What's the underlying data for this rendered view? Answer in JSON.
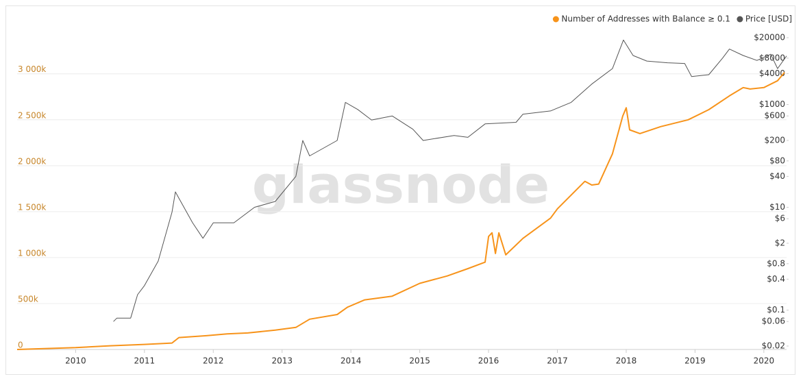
{
  "chart_data": {
    "type": "line",
    "watermark": "glassnode",
    "legend": "top-right",
    "grid": true,
    "xlim": [
      2009.15,
      2020.33
    ],
    "xticks": [
      2010,
      2011,
      2012,
      2013,
      2014,
      2015,
      2016,
      2017,
      2018,
      2019,
      2020
    ],
    "ylim": [
      0,
      3520000
    ],
    "yticks": [
      {
        "value": 0,
        "label": "0"
      },
      {
        "value": 500000,
        "label": "500k"
      },
      {
        "value": 1000000,
        "label": "1 000k"
      },
      {
        "value": 1500000,
        "label": "1 500k"
      },
      {
        "value": 2000000,
        "label": "2 000k"
      },
      {
        "value": 2500000,
        "label": "2 500k"
      },
      {
        "value": 3000000,
        "label": "3 000k"
      }
    ],
    "y2scale": "log",
    "y2lim": [
      0.01714,
      33650
    ],
    "y2ticks": [
      {
        "value": 0.02,
        "label": "$0.02"
      },
      {
        "value": 0.06,
        "label": "$0.06"
      },
      {
        "value": 0.1,
        "label": "$0.1"
      },
      {
        "value": 0.4,
        "label": "$0.4"
      },
      {
        "value": 0.8,
        "label": "$0.8"
      },
      {
        "value": 2,
        "label": "$2"
      },
      {
        "value": 6,
        "label": "$6"
      },
      {
        "value": 10,
        "label": "$10"
      },
      {
        "value": 40,
        "label": "$40"
      },
      {
        "value": 80,
        "label": "$80"
      },
      {
        "value": 200,
        "label": "$200"
      },
      {
        "value": 600,
        "label": "$600"
      },
      {
        "value": 1000,
        "label": "$1000"
      },
      {
        "value": 4000,
        "label": "$4000"
      },
      {
        "value": 8000,
        "label": "$8000"
      },
      {
        "value": 20000,
        "label": "$20000"
      }
    ],
    "series": [
      {
        "name": "Number of Addresses with Balance ≥ 0.1",
        "color": "#f7931a",
        "axis": "y",
        "x": [
          2009.15,
          2010.0,
          2010.5,
          2011.0,
          2011.4,
          2011.5,
          2011.9,
          2012.2,
          2012.5,
          2012.9,
          2013.2,
          2013.4,
          2013.8,
          2013.95,
          2014.2,
          2014.6,
          2015.0,
          2015.4,
          2015.7,
          2015.95,
          2016.0,
          2016.05,
          2016.1,
          2016.15,
          2016.25,
          2016.5,
          2016.9,
          2017.0,
          2017.4,
          2017.5,
          2017.6,
          2017.8,
          2017.95,
          2018.0,
          2018.05,
          2018.2,
          2018.5,
          2018.9,
          2019.2,
          2019.5,
          2019.7,
          2019.8,
          2020.0,
          2020.2,
          2020.3
        ],
        "values": [
          0,
          20000,
          40000,
          55000,
          70000,
          130000,
          150000,
          170000,
          180000,
          210000,
          240000,
          330000,
          380000,
          460000,
          540000,
          580000,
          720000,
          800000,
          880000,
          950000,
          1230000,
          1270000,
          1045000,
          1270000,
          1030000,
          1210000,
          1430000,
          1530000,
          1830000,
          1790000,
          1800000,
          2130000,
          2540000,
          2630000,
          2390000,
          2350000,
          2425000,
          2500000,
          2610000,
          2760000,
          2850000,
          2835000,
          2850000,
          2925000,
          3015000
        ]
      },
      {
        "name": "Price [USD]",
        "color": "#555555",
        "axis": "y2",
        "x": [
          2010.55,
          2010.6,
          2010.8,
          2010.9,
          2011.0,
          2011.2,
          2011.4,
          2011.45,
          2011.5,
          2011.7,
          2011.85,
          2012.0,
          2012.3,
          2012.6,
          2012.9,
          2013.2,
          2013.3,
          2013.4,
          2013.8,
          2013.92,
          2014.1,
          2014.3,
          2014.6,
          2014.9,
          2015.05,
          2015.5,
          2015.7,
          2015.95,
          2016.4,
          2016.5,
          2016.9,
          2017.2,
          2017.5,
          2017.8,
          2017.96,
          2018.1,
          2018.3,
          2018.6,
          2018.85,
          2018.95,
          2019.2,
          2019.4,
          2019.5,
          2019.7,
          2019.9,
          2020.1,
          2020.2,
          2020.33
        ],
        "values": [
          0.06,
          0.07,
          0.07,
          0.2,
          0.3,
          0.9,
          8,
          20,
          15,
          5,
          2.5,
          5,
          5,
          10,
          13,
          40,
          200,
          100,
          200,
          1100,
          800,
          500,
          600,
          330,
          200,
          250,
          230,
          420,
          450,
          650,
          750,
          1100,
          2500,
          5000,
          18000,
          9000,
          7000,
          6500,
          6300,
          3500,
          3800,
          8000,
          12000,
          9000,
          7200,
          9500,
          5000,
          8800
        ]
      }
    ]
  }
}
